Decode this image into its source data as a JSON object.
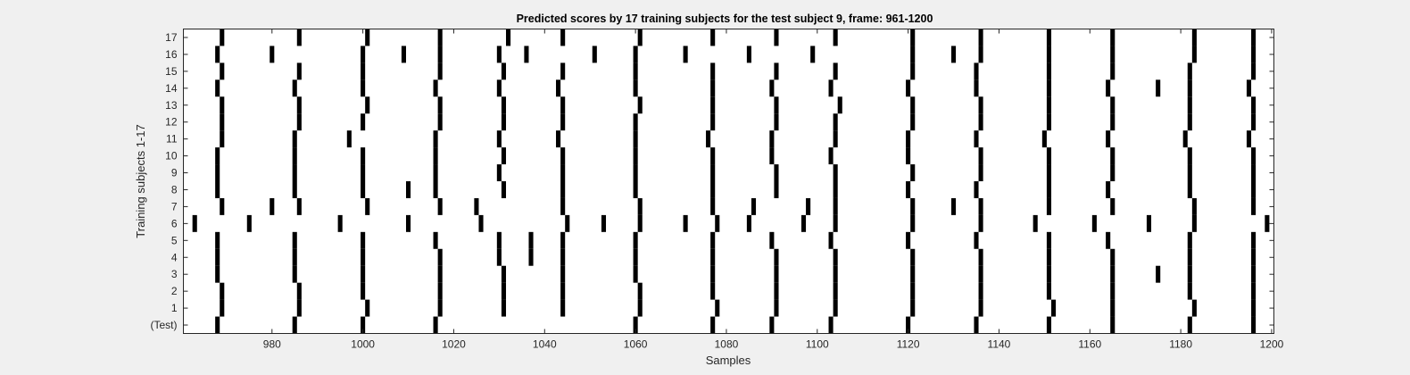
{
  "chart_data": {
    "type": "heatmap",
    "title": "Predicted scores by 17 training subjects for the test subject 9, frame: 961-1200",
    "xlabel": "Samples",
    "ylabel": "Training subjects 1-17",
    "xlim": [
      961,
      1200
    ],
    "xticks": [
      980,
      1000,
      1020,
      1040,
      1060,
      1080,
      1100,
      1120,
      1140,
      1160,
      1180,
      1200
    ],
    "row_labels": [
      "(Test)",
      "1",
      "2",
      "3",
      "4",
      "5",
      "6",
      "7",
      "8",
      "9",
      "10",
      "11",
      "12",
      "13",
      "14",
      "15",
      "16",
      "17"
    ],
    "colors": {
      "background": "#f0f0f0",
      "plot_bg": "#ffffff",
      "mark": "#000000",
      "axis": "#262626"
    },
    "rows": [
      {
        "label": "(Test)",
        "marks": [
          968,
          985,
          1000,
          1016,
          1060,
          1077,
          1090,
          1103,
          1120,
          1135,
          1151,
          1165,
          1182,
          1196
        ]
      },
      {
        "label": "1",
        "marks": [
          969,
          986,
          1001,
          1017,
          1031,
          1044,
          1061,
          1078,
          1091,
          1104,
          1121,
          1136,
          1152,
          1165,
          1183,
          1196
        ]
      },
      {
        "label": "2",
        "marks": [
          969,
          986,
          1000,
          1017,
          1031,
          1044,
          1061,
          1077,
          1091,
          1104,
          1121,
          1136,
          1151,
          1165,
          1182,
          1196
        ]
      },
      {
        "label": "3",
        "marks": [
          968,
          985,
          1000,
          1017,
          1031,
          1044,
          1060,
          1077,
          1091,
          1104,
          1121,
          1136,
          1151,
          1165,
          1175,
          1182,
          1196
        ]
      },
      {
        "label": "4",
        "marks": [
          968,
          985,
          1000,
          1017,
          1030,
          1037,
          1044,
          1060,
          1077,
          1091,
          1104,
          1121,
          1136,
          1151,
          1165,
          1182,
          1196
        ]
      },
      {
        "label": "5",
        "marks": [
          968,
          985,
          1000,
          1016,
          1030,
          1037,
          1044,
          1060,
          1077,
          1090,
          1103,
          1120,
          1135,
          1151,
          1164,
          1182,
          1196
        ]
      },
      {
        "label": "6",
        "marks": [
          963,
          975,
          995,
          1010,
          1026,
          1045,
          1053,
          1061,
          1071,
          1078,
          1085,
          1097,
          1104,
          1121,
          1136,
          1148,
          1161,
          1173,
          1183,
          1199
        ]
      },
      {
        "label": "7",
        "marks": [
          969,
          980,
          986,
          1001,
          1017,
          1025,
          1044,
          1061,
          1077,
          1086,
          1098,
          1104,
          1121,
          1130,
          1136,
          1151,
          1165,
          1183,
          1196
        ]
      },
      {
        "label": "8",
        "marks": [
          968,
          985,
          1000,
          1010,
          1016,
          1031,
          1044,
          1060,
          1077,
          1091,
          1104,
          1120,
          1135,
          1151,
          1164,
          1182,
          1196
        ]
      },
      {
        "label": "9",
        "marks": [
          968,
          985,
          1000,
          1016,
          1030,
          1044,
          1060,
          1077,
          1091,
          1104,
          1121,
          1136,
          1151,
          1165,
          1182,
          1196
        ]
      },
      {
        "label": "10",
        "marks": [
          968,
          985,
          1000,
          1016,
          1031,
          1044,
          1060,
          1077,
          1090,
          1103,
          1120,
          1136,
          1151,
          1165,
          1182,
          1196
        ]
      },
      {
        "label": "11",
        "marks": [
          969,
          985,
          997,
          1016,
          1030,
          1043,
          1060,
          1076,
          1090,
          1104,
          1120,
          1135,
          1150,
          1164,
          1181,
          1195
        ]
      },
      {
        "label": "12",
        "marks": [
          969,
          986,
          1000,
          1017,
          1031,
          1044,
          1060,
          1077,
          1091,
          1104,
          1121,
          1136,
          1151,
          1165,
          1182,
          1196
        ]
      },
      {
        "label": "13",
        "marks": [
          969,
          986,
          1001,
          1017,
          1031,
          1044,
          1061,
          1077,
          1091,
          1105,
          1121,
          1136,
          1151,
          1165,
          1182,
          1196
        ]
      },
      {
        "label": "14",
        "marks": [
          968,
          985,
          1000,
          1016,
          1030,
          1043,
          1060,
          1077,
          1090,
          1103,
          1120,
          1135,
          1151,
          1164,
          1175,
          1182,
          1195
        ]
      },
      {
        "label": "15",
        "marks": [
          969,
          986,
          1000,
          1017,
          1031,
          1044,
          1060,
          1077,
          1091,
          1104,
          1121,
          1135,
          1151,
          1165,
          1182,
          1196
        ]
      },
      {
        "label": "16",
        "marks": [
          968,
          980,
          1000,
          1009,
          1017,
          1030,
          1036,
          1051,
          1060,
          1071,
          1085,
          1099,
          1121,
          1130,
          1136,
          1151,
          1165,
          1183,
          1196
        ]
      },
      {
        "label": "17",
        "marks": [
          969,
          986,
          1001,
          1017,
          1032,
          1044,
          1061,
          1077,
          1091,
          1104,
          1121,
          1136,
          1151,
          1165,
          1183,
          1196
        ]
      }
    ]
  }
}
